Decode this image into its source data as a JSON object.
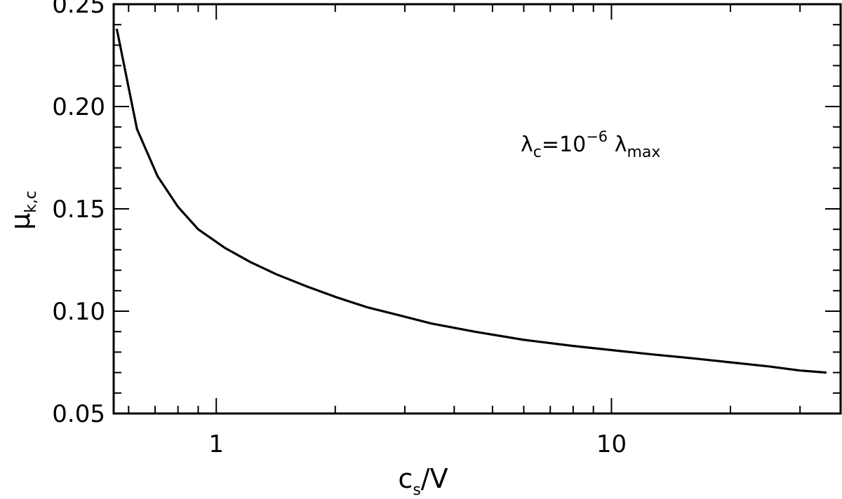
{
  "chart_data": {
    "type": "line",
    "x_scale": "log",
    "xlim": [
      0.55,
      38
    ],
    "ylim": [
      0.05,
      0.25
    ],
    "xlabel": {
      "main": "c",
      "sub": "s",
      "rest": "/V"
    },
    "ylabel": {
      "main": "μ",
      "sub": "k,c"
    },
    "x_ticks": [
      {
        "value": 1,
        "label": "1"
      },
      {
        "value": 10,
        "label": "10"
      }
    ],
    "y_ticks": [
      {
        "value": 0.05,
        "label": "0.05"
      },
      {
        "value": 0.1,
        "label": "0.10"
      },
      {
        "value": 0.15,
        "label": "0.15"
      },
      {
        "value": 0.2,
        "label": "0.20"
      },
      {
        "value": 0.25,
        "label": "0.25"
      }
    ],
    "annotation": {
      "lambda": "λ",
      "c_sub": "c",
      "eq": "=10",
      "exp": "−6",
      "lambda2": " λ",
      "max_sub": "max"
    },
    "series": [
      {
        "x": [
          0.56,
          0.63,
          0.71,
          0.8,
          0.9,
          1.05,
          1.22,
          1.42,
          1.7,
          2.0,
          2.4,
          2.9,
          3.5,
          4.5,
          6.0,
          8.0,
          10.0,
          12.5,
          16.0,
          20.0,
          25.0,
          30.0,
          35.0
        ],
        "y": [
          0.238,
          0.189,
          0.166,
          0.151,
          0.14,
          0.131,
          0.124,
          0.118,
          0.112,
          0.107,
          0.102,
          0.098,
          0.094,
          0.09,
          0.086,
          0.083,
          0.081,
          0.079,
          0.077,
          0.075,
          0.073,
          0.071,
          0.07
        ]
      }
    ],
    "grid": false
  }
}
